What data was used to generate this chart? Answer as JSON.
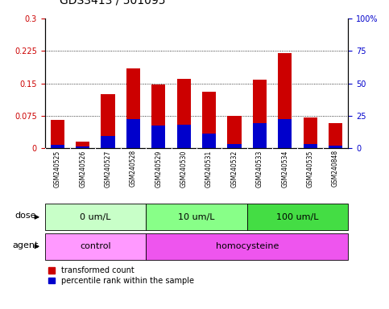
{
  "title": "GDS3413 / 501095",
  "samples": [
    "GSM240525",
    "GSM240526",
    "GSM240527",
    "GSM240528",
    "GSM240529",
    "GSM240530",
    "GSM240531",
    "GSM240532",
    "GSM240533",
    "GSM240534",
    "GSM240535",
    "GSM240848"
  ],
  "transformed_count": [
    0.065,
    0.015,
    0.125,
    0.185,
    0.148,
    0.16,
    0.13,
    0.075,
    0.158,
    0.22,
    0.072,
    0.058
  ],
  "percentile_rank_scaled": [
    0.008,
    0.005,
    0.028,
    0.068,
    0.052,
    0.055,
    0.035,
    0.01,
    0.058,
    0.068,
    0.01,
    0.007
  ],
  "ylim_left": [
    0,
    0.3
  ],
  "ylim_right": [
    0,
    100
  ],
  "yticks_left": [
    0,
    0.075,
    0.15,
    0.225,
    0.3
  ],
  "yticks_right": [
    0,
    25,
    50,
    75,
    100
  ],
  "ytick_labels_left": [
    "0",
    "0.075",
    "0.15",
    "0.225",
    "0.3"
  ],
  "ytick_labels_right": [
    "0",
    "25",
    "50",
    "75",
    "100%"
  ],
  "hlines": [
    0.075,
    0.15,
    0.225
  ],
  "bar_color_red": "#cc0000",
  "bar_color_blue": "#0000cc",
  "bar_width": 0.55,
  "dose_groups": [
    {
      "label": "0 um/L",
      "start": 0,
      "end": 4,
      "color": "#c8ffc8"
    },
    {
      "label": "10 um/L",
      "start": 4,
      "end": 8,
      "color": "#88ff88"
    },
    {
      "label": "100 um/L",
      "start": 8,
      "end": 12,
      "color": "#44dd44"
    }
  ],
  "agent_groups": [
    {
      "label": "control",
      "start": 0,
      "end": 4,
      "color": "#ff99ff"
    },
    {
      "label": "homocysteine",
      "start": 4,
      "end": 12,
      "color": "#ee55ee"
    }
  ],
  "dose_label": "dose",
  "agent_label": "agent",
  "legend_red": "transformed count",
  "legend_blue": "percentile rank within the sample",
  "background_color": "#ffffff",
  "tick_area_color": "#c8c8c8",
  "title_fontsize": 10,
  "axis_color_left": "#cc0000",
  "axis_color_right": "#0000cc"
}
